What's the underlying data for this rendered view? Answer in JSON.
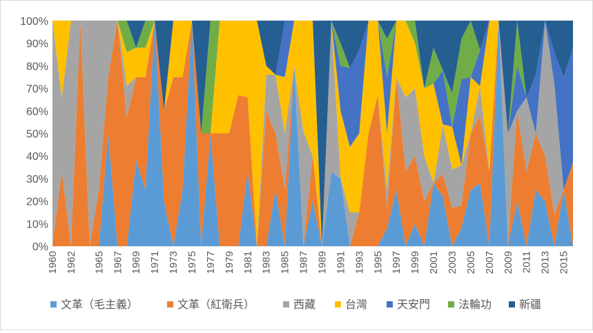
{
  "chart_data": {
    "type": "area",
    "stacked": "percent",
    "title": "",
    "xlabel": "",
    "ylabel": "",
    "ylim": [
      0,
      100
    ],
    "y_ticks": [
      "0%",
      "10%",
      "20%",
      "30%",
      "40%",
      "50%",
      "60%",
      "70%",
      "80%",
      "90%",
      "100%"
    ],
    "x": [
      1960,
      1961,
      1962,
      1963,
      1964,
      1965,
      1966,
      1967,
      1968,
      1969,
      1970,
      1971,
      1972,
      1973,
      1974,
      1975,
      1976,
      1977,
      1978,
      1979,
      1980,
      1981,
      1982,
      1983,
      1984,
      1985,
      1986,
      1987,
      1988,
      1989,
      1990,
      1991,
      1992,
      1993,
      1994,
      1995,
      1996,
      1997,
      1998,
      1999,
      2000,
      2001,
      2002,
      2003,
      2004,
      2005,
      2006,
      2007,
      2008,
      2009,
      2010,
      2011,
      2012,
      2013,
      2014,
      2015,
      2016
    ],
    "x_tick_labels": [
      "1960",
      "1962",
      "1965",
      "1967",
      "1969",
      "1971",
      "1973",
      "1975",
      "1977",
      "1979",
      "1981",
      "1983",
      "1985",
      "1987",
      "1989",
      "1991",
      "1993",
      "1995",
      "1997",
      "1999",
      "2001",
      "2003",
      "2005",
      "2007",
      "2009",
      "2011",
      "2013",
      "2015"
    ],
    "legend_position": "bottom",
    "grid": true,
    "series": [
      {
        "name": "文革（毛主義）",
        "color": "#5b9bd5",
        "values": [
          0,
          0,
          0,
          0,
          0,
          0,
          50,
          0,
          0,
          38,
          25,
          100,
          20,
          0,
          25,
          100,
          0,
          50,
          0,
          0,
          0,
          33,
          0,
          0,
          25,
          0,
          80,
          0,
          20,
          0,
          33,
          30,
          0,
          0,
          0,
          0,
          8,
          25,
          0,
          10,
          0,
          28,
          22,
          0,
          8,
          25,
          28,
          0,
          100,
          0,
          20,
          0,
          25,
          20,
          0,
          25,
          0
        ]
      },
      {
        "name": "文革（紅衛兵）",
        "color": "#ed7d31",
        "values": [
          0,
          33,
          0,
          100,
          0,
          25,
          25,
          100,
          57,
          37,
          50,
          0,
          40,
          75,
          50,
          0,
          50,
          0,
          50,
          50,
          67,
          33,
          0,
          60,
          25,
          25,
          0,
          0,
          20,
          0,
          0,
          0,
          0,
          15,
          50,
          67,
          8,
          50,
          33,
          30,
          20,
          0,
          10,
          17,
          10,
          25,
          30,
          33,
          0,
          0,
          40,
          33,
          25,
          20,
          14,
          0,
          37
        ]
      },
      {
        "name": "西藏",
        "color": "#a5a5a5",
        "values": [
          100,
          33,
          100,
          0,
          100,
          75,
          25,
          0,
          14,
          0,
          0,
          0,
          0,
          0,
          0,
          0,
          0,
          0,
          0,
          0,
          0,
          0,
          0,
          16,
          26,
          25,
          0,
          51,
          0,
          0,
          67,
          0,
          15,
          0,
          0,
          0,
          9,
          0,
          33,
          30,
          20,
          0,
          22,
          17,
          18,
          0,
          13,
          0,
          0,
          50,
          0,
          33,
          0,
          60,
          58,
          0,
          0
        ]
      },
      {
        "name": "台灣",
        "color": "#ffc000",
        "values": [
          0,
          34,
          0,
          0,
          0,
          0,
          0,
          0,
          15,
          13,
          13,
          0,
          0,
          25,
          25,
          0,
          0,
          0,
          50,
          50,
          33,
          34,
          100,
          4,
          0,
          25,
          20,
          49,
          60,
          0,
          0,
          30,
          29,
          35,
          50,
          33,
          25,
          25,
          34,
          20,
          30,
          44,
          0,
          19,
          0,
          25,
          0,
          67,
          0,
          0,
          0,
          0,
          0,
          0,
          0,
          0,
          0
        ]
      },
      {
        "name": "天安門",
        "color": "#4472c4",
        "values": [
          0,
          0,
          0,
          0,
          0,
          0,
          0,
          0,
          0,
          0,
          0,
          0,
          0,
          0,
          0,
          0,
          0,
          0,
          0,
          0,
          0,
          0,
          0,
          0,
          0,
          25,
          0,
          0,
          0,
          0,
          0,
          20,
          35,
          37,
          0,
          0,
          25,
          0,
          0,
          0,
          0,
          0,
          24,
          0,
          38,
          0,
          16,
          0,
          0,
          0,
          20,
          0,
          26,
          0,
          14,
          50,
          51
        ]
      },
      {
        "name": "法輪功",
        "color": "#70ad47",
        "values": [
          0,
          0,
          0,
          0,
          0,
          0,
          0,
          0,
          14,
          0,
          12,
          0,
          0,
          0,
          0,
          0,
          0,
          50,
          0,
          0,
          0,
          0,
          0,
          0,
          0,
          0,
          0,
          0,
          0,
          0,
          0,
          10,
          0,
          0,
          0,
          0,
          17,
          0,
          0,
          10,
          0,
          16,
          0,
          15,
          18,
          25,
          0,
          0,
          0,
          0,
          20,
          0,
          0,
          0,
          0,
          0,
          0
        ]
      },
      {
        "name": "新疆",
        "color": "#255e91",
        "values": [
          0,
          0,
          0,
          0,
          0,
          0,
          0,
          0,
          0,
          12,
          0,
          0,
          40,
          0,
          0,
          0,
          50,
          0,
          0,
          0,
          0,
          0,
          0,
          20,
          24,
          0,
          0,
          0,
          0,
          100,
          0,
          10,
          21,
          13,
          0,
          0,
          8,
          0,
          0,
          0,
          30,
          12,
          22,
          32,
          8,
          0,
          13,
          0,
          0,
          50,
          0,
          34,
          24,
          0,
          14,
          25,
          12
        ]
      }
    ]
  }
}
